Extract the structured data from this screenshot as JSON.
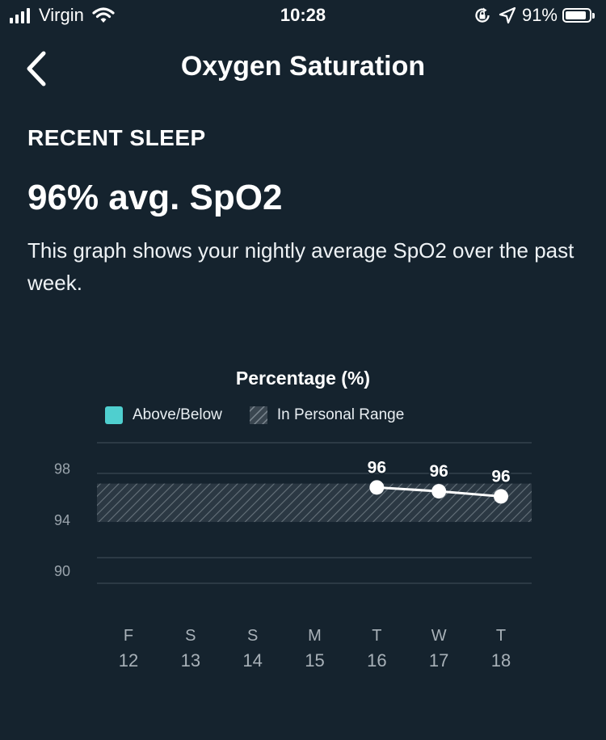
{
  "status_bar": {
    "carrier": "Virgin",
    "time": "10:28",
    "battery": "91%",
    "battery_level": 0.91,
    "icons": [
      "signal-icon",
      "wifi-icon",
      "rotation-lock-icon",
      "location-arrow-icon",
      "battery-icon"
    ]
  },
  "header": {
    "title": "Oxygen Saturation",
    "back_icon": "chevron-left-icon"
  },
  "summary": {
    "section_label": "RECENT SLEEP",
    "value": "96% avg. SpO2",
    "description": "This graph shows your nightly average SpO2 over the past week."
  },
  "colors": {
    "background": "#15232e",
    "above_below": "#4fcfcf",
    "range_hatch": "#5a6670",
    "line": "#ffffff",
    "gridline": "#34424d",
    "tick_text": "#9aa4ac"
  },
  "chart_data": {
    "type": "line",
    "title": "Percentage (%)",
    "legend": [
      {
        "label": "Above/Below",
        "style": "solid",
        "color": "#4fcfcf"
      },
      {
        "label": "In Personal Range",
        "style": "hatched"
      }
    ],
    "legend_placement": "top",
    "x": [
      {
        "day": "F",
        "date": "12"
      },
      {
        "day": "S",
        "date": "13"
      },
      {
        "day": "S",
        "date": "14"
      },
      {
        "day": "M",
        "date": "15"
      },
      {
        "day": "T",
        "date": "16"
      },
      {
        "day": "W",
        "date": "17"
      },
      {
        "day": "T",
        "date": "18"
      }
    ],
    "series": [
      {
        "values": [
          null,
          null,
          null,
          null,
          96.5,
          96.2,
          95.8
        ],
        "labels": [
          "",
          "",
          "",
          "",
          "96",
          "96",
          "96"
        ]
      }
    ],
    "personal_range": [
      93.8,
      96.8
    ],
    "yticks": [
      "98",
      "94",
      "90"
    ],
    "ylim": [
      89,
      100
    ],
    "grid": true
  }
}
